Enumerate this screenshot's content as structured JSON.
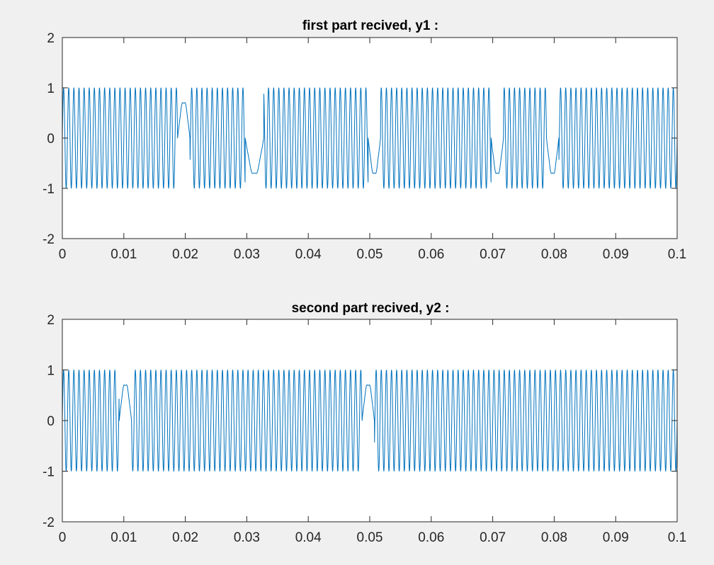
{
  "figure": {
    "background": "#f0f0f0",
    "axes_color": "#262626",
    "line_color": "#0072bd"
  },
  "chart_data": [
    {
      "type": "line",
      "title": "first part recived, y1 :",
      "xlabel": "",
      "ylabel": "",
      "xlim": [
        0,
        0.1
      ],
      "ylim": [
        -2,
        2
      ],
      "xticks": [
        0,
        0.01,
        0.02,
        0.03,
        0.04,
        0.05,
        0.06,
        0.07,
        0.08,
        0.09,
        0.1
      ],
      "xtick_labels": [
        "0",
        "0.01",
        "0.02",
        "0.03",
        "0.04",
        "0.05",
        "0.06",
        "0.07",
        "0.08",
        "0.09",
        "0.1"
      ],
      "yticks": [
        -2,
        -1,
        0,
        1,
        2
      ],
      "ytick_labels": [
        "-2",
        "-1",
        "0",
        "1",
        "2"
      ],
      "grid": false,
      "series": [
        {
          "color": "#0072bd",
          "carrier_frequency_hz": 1200,
          "amplitude": 1,
          "description": "BFSK-like sinusoid; low-frequency (flat-topped, ~±0.73) bit periods",
          "low_segments": [
            [
              0.01875,
              0.02075
            ],
            [
              0.02975,
              0.03275
            ],
            [
              0.04975,
              0.05175
            ],
            [
              0.06975,
              0.07175
            ],
            [
              0.07875,
              0.08075
            ]
          ],
          "low_level": 0.73
        }
      ]
    },
    {
      "type": "line",
      "title": "second part recived, y2 :",
      "xlabel": "",
      "ylabel": "",
      "xlim": [
        0,
        0.1
      ],
      "ylim": [
        -2,
        2
      ],
      "xticks": [
        0,
        0.01,
        0.02,
        0.03,
        0.04,
        0.05,
        0.06,
        0.07,
        0.08,
        0.09,
        0.1
      ],
      "xtick_labels": [
        "0",
        "0.01",
        "0.02",
        "0.03",
        "0.04",
        "0.05",
        "0.06",
        "0.07",
        "0.08",
        "0.09",
        "0.1"
      ],
      "yticks": [
        -2,
        -1,
        0,
        1,
        2
      ],
      "ytick_labels": [
        "-2",
        "-1",
        "0",
        "1",
        "2"
      ],
      "grid": false,
      "series": [
        {
          "color": "#0072bd",
          "carrier_frequency_hz": 1200,
          "amplitude": 1,
          "description": "BFSK-like sinusoid; low-frequency (flat-topped, ~±0.73) bit periods",
          "low_segments": [
            [
              0.00925,
              0.01125
            ],
            [
              0.04875,
              0.05075
            ]
          ],
          "low_level": 0.73
        }
      ]
    }
  ]
}
